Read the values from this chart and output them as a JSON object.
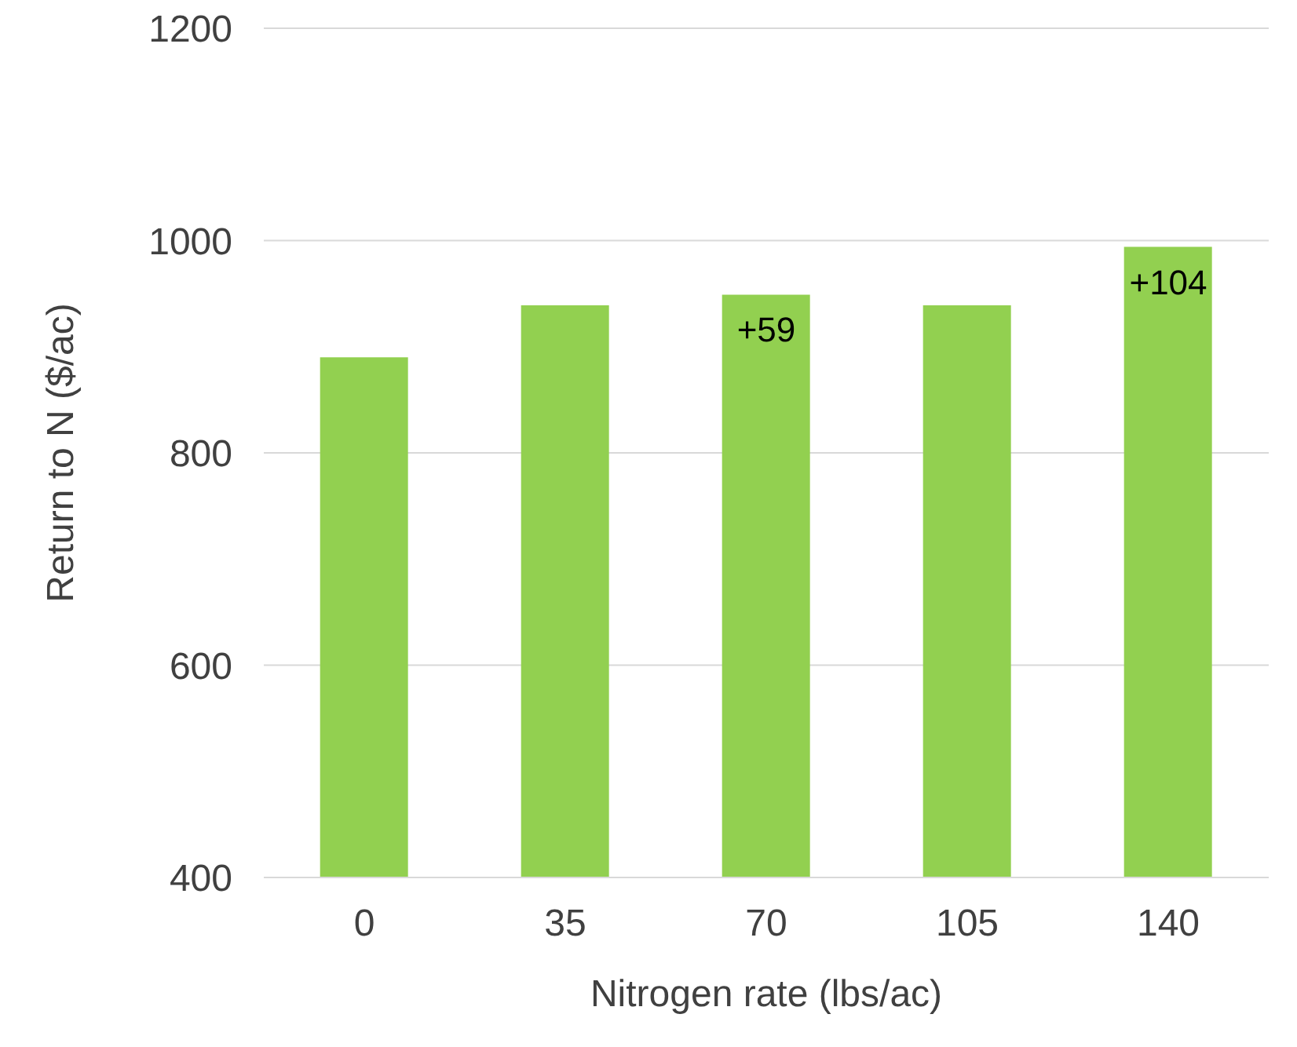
{
  "chart_data": {
    "type": "bar",
    "xlabel": "Nitrogen rate (lbs/ac)",
    "ylabel": "Return to N ($/ac)",
    "categories": [
      "0",
      "35",
      "70",
      "105",
      "140"
    ],
    "values": [
      890,
      939,
      949,
      939,
      994
    ],
    "annotations": [
      {
        "text": "+59",
        "x": "70",
        "y": 949
      },
      {
        "text": "+104",
        "x": "140",
        "y": 994
      }
    ],
    "color": "#92d050",
    "ylim": [
      400,
      1200
    ],
    "yticks": [
      400,
      600,
      800,
      1000,
      1200
    ],
    "grid": "y",
    "legend": false
  }
}
